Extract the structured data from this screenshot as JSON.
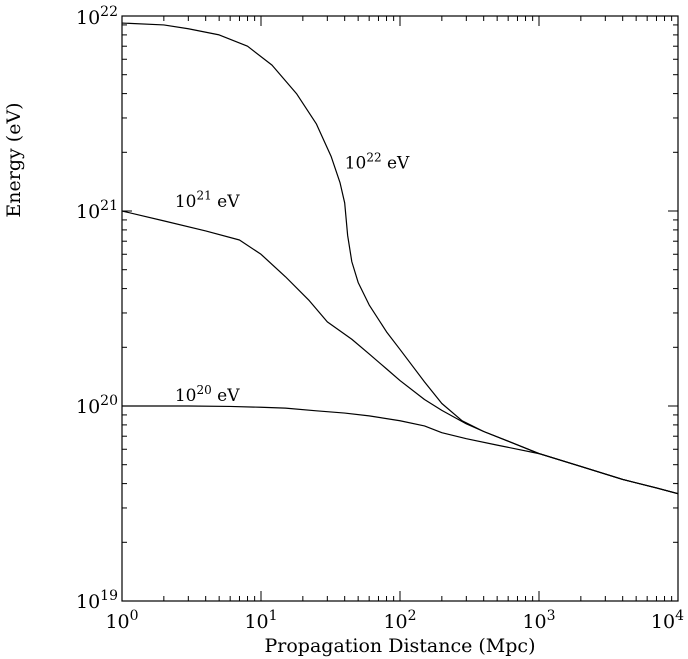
{
  "chart_data": {
    "type": "line",
    "title": "",
    "xlabel": "Propagation Distance (Mpc)",
    "ylabel": "Energy (eV)",
    "x_scale": "log",
    "y_scale": "log",
    "xlim": [
      1,
      10000
    ],
    "ylim": [
      1e+19,
      1e+22
    ],
    "grid": false,
    "legend": "none",
    "x_ticks": [
      {
        "value": 1,
        "base": "10",
        "exp": "0"
      },
      {
        "value": 10,
        "base": "10",
        "exp": "1"
      },
      {
        "value": 100,
        "base": "10",
        "exp": "2"
      },
      {
        "value": 1000,
        "base": "10",
        "exp": "3"
      },
      {
        "value": 10000,
        "base": "10",
        "exp": "4"
      }
    ],
    "y_ticks": [
      {
        "value": 1e+19,
        "base": "10",
        "exp": "19"
      },
      {
        "value": 1e+20,
        "base": "10",
        "exp": "20"
      },
      {
        "value": 1e+21,
        "base": "10",
        "exp": "21"
      },
      {
        "value": 1e+22,
        "base": "10",
        "exp": "22"
      }
    ],
    "series": [
      {
        "label": {
          "base": "10",
          "exp": "22",
          "unit": " eV",
          "at": [
            40,
            1.65e+21
          ]
        },
        "points": [
          [
            1,
            9.2e+21
          ],
          [
            2,
            9e+21
          ],
          [
            3,
            8.6e+21
          ],
          [
            5,
            8e+21
          ],
          [
            8,
            7e+21
          ],
          [
            12,
            5.6e+21
          ],
          [
            18,
            4e+21
          ],
          [
            25,
            2.8e+21
          ],
          [
            32,
            1.9e+21
          ],
          [
            37,
            1.4e+21
          ],
          [
            40,
            1.1e+21
          ],
          [
            42,
            7.5e+20
          ],
          [
            45,
            5.5e+20
          ],
          [
            50,
            4.3e+20
          ],
          [
            60,
            3.3e+20
          ],
          [
            80,
            2.4e+20
          ],
          [
            100,
            1.95e+20
          ],
          [
            150,
            1.33e+20
          ],
          [
            200,
            1.03e+20
          ],
          [
            280,
            8.4e+19
          ],
          [
            400,
            7.4e+19
          ],
          [
            600,
            6.6e+19
          ],
          [
            1000,
            5.7e+19
          ],
          [
            2000,
            4.9e+19
          ],
          [
            4000,
            4.2e+19
          ],
          [
            7000,
            3.8e+19
          ],
          [
            10000,
            3.55e+19
          ]
        ]
      },
      {
        "label": {
          "base": "10",
          "exp": "21",
          "unit": " eV",
          "at": [
            2.4,
            1.05e+21
          ]
        },
        "points": [
          [
            1,
            1e+21
          ],
          [
            2,
            8.9e+20
          ],
          [
            4,
            7.9e+20
          ],
          [
            7,
            7.1e+20
          ],
          [
            10,
            6e+20
          ],
          [
            15,
            4.6e+20
          ],
          [
            22,
            3.5e+20
          ],
          [
            30,
            2.7e+20
          ],
          [
            45,
            2.2e+20
          ],
          [
            60,
            1.85e+20
          ],
          [
            80,
            1.55e+20
          ],
          [
            100,
            1.35e+20
          ],
          [
            150,
            1.08e+20
          ],
          [
            200,
            9.5e+19
          ],
          [
            300,
            8.1e+19
          ],
          [
            400,
            7.4e+19
          ],
          [
            600,
            6.6e+19
          ],
          [
            1000,
            5.7e+19
          ],
          [
            2000,
            4.9e+19
          ],
          [
            4000,
            4.2e+19
          ],
          [
            7000,
            3.8e+19
          ],
          [
            10000,
            3.55e+19
          ]
        ]
      },
      {
        "label": {
          "base": "10",
          "exp": "20",
          "unit": " eV",
          "at": [
            2.4,
            1.06e+20
          ]
        },
        "points": [
          [
            1,
            1e+20
          ],
          [
            3,
            1e+20
          ],
          [
            6,
            9.95e+19
          ],
          [
            10,
            9.85e+19
          ],
          [
            15,
            9.75e+19
          ],
          [
            25,
            9.45e+19
          ],
          [
            40,
            9.2e+19
          ],
          [
            60,
            8.9e+19
          ],
          [
            100,
            8.4e+19
          ],
          [
            150,
            7.9e+19
          ],
          [
            200,
            7.3e+19
          ],
          [
            300,
            6.8e+19
          ],
          [
            500,
            6.3e+19
          ],
          [
            1000,
            5.7e+19
          ],
          [
            2000,
            4.9e+19
          ],
          [
            4000,
            4.2e+19
          ],
          [
            7000,
            3.8e+19
          ],
          [
            10000,
            3.55e+19
          ]
        ]
      }
    ]
  }
}
